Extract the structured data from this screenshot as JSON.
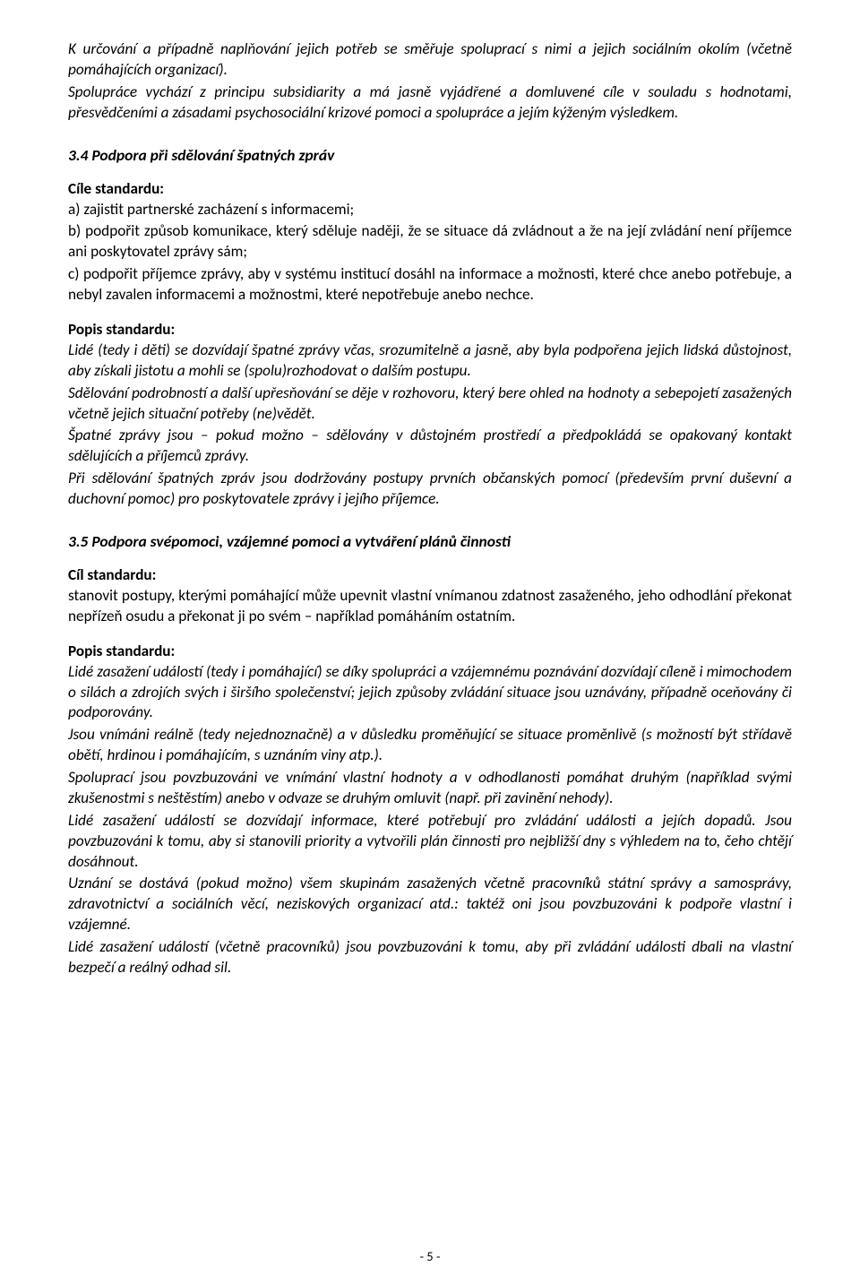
{
  "intro_p1": "K určování a případně naplňování jejich potřeb se směřuje spoluprací s nimi a jejich sociálním okolím (včetně pomáhajících organizací).",
  "intro_p2": "Spolupráce vychází z principu subsidiarity a má jasně vyjádřené a domluvené cíle v souladu s hodnotami, přesvědčeními a zásadami psychosociální krizové pomoci a spolupráce a jejím kýženým výsledkem.",
  "s34_title": "3.4 Podpora při sdělování špatných zpráv",
  "s34_cile_label": "Cíle standardu:",
  "s34_a": "a) zajistit partnerské zacházení s informacemi;",
  "s34_b": "b) podpořit způsob komunikace, který sděluje naději, že se situace dá zvládnout a že na její zvládání není příjemce ani poskytovatel zprávy sám;",
  "s34_c": "c) podpořit příjemce zprávy, aby v systému institucí dosáhl na informace a možnosti, které chce anebo potřebuje, a nebyl zavalen informacemi a možnostmi, které nepotřebuje anebo nechce.",
  "s34_popis_label": "Popis standardu:",
  "s34_p1": "Lidé (tedy i děti) se dozvídají špatné zprávy včas, srozumitelně a jasně, aby byla podpořena jejich lidská důstojnost, aby získali jistotu a mohli se (spolu)rozhodovat o dalším postupu.",
  "s34_p2": "Sdělování podrobností a další upřesňování se děje v rozhovoru, který bere ohled na hodnoty a sebepojetí zasažených včetně jejich situační potřeby (ne)vědět.",
  "s34_p3": "Špatné zprávy jsou – pokud možno – sdělovány v důstojném prostředí a předpokládá se opakovaný kontakt sdělujících a příjemců zprávy.",
  "s34_p4": "Při sdělování špatných zpráv jsou dodržovány postupy prvních občanských pomocí (především první duševní a duchovní pomoc) pro poskytovatele zprávy i jejího příjemce.",
  "s35_title": "3.5 Podpora svépomoci, vzájemné pomoci a vytváření plánů činnosti",
  "s35_cil_label": "Cíl standardu:",
  "s35_cil_text": "stanovit postupy, kterými pomáhající může upevnit vlastní vnímanou zdatnost zasaženého, jeho odhodlání překonat nepřízeň osudu a překonat ji po svém – například pomáháním ostatním.",
  "s35_popis_label": "Popis standardu:",
  "s35_p1": "Lidé zasažení událostí (tedy i pomáhající) se díky spolupráci a vzájemnému poznávání dozvídají cíleně i mimochodem o silách a zdrojích svých i širšího společenství; jejich způsoby zvládání situace jsou uznávány, případně oceňovány či podporovány.",
  "s35_p2": "Jsou vnímáni reálně (tedy nejednoznačně) a v důsledku proměňující se situace proměnlivě (s možností být střídavě obětí, hrdinou i pomáhajícím, s uznáním viny atp.).",
  "s35_p3": "Spoluprací jsou povzbuzováni ve vnímání vlastní hodnoty a v odhodlanosti pomáhat druhým (například svými zkušenostmi s neštěstím) anebo v odvaze se druhým omluvit (např. při zavinění nehody).",
  "s35_p4": "Lidé zasažení událostí se dozvídají informace, které potřebují pro zvládání události a jejích dopadů. Jsou povzbuzováni k tomu, aby si stanovili priority a vytvořili plán činnosti pro nejbližší dny s výhledem na to, čeho chtějí dosáhnout.",
  "s35_p5": "Uznání se dostává (pokud možno) všem skupinám zasažených včetně pracovníků státní správy a samosprávy, zdravotnictví a sociálních věcí, neziskových organizací atd.: taktéž oni jsou povzbuzováni k podpoře vlastní i vzájemné.",
  "s35_p6": "Lidé zasažení událostí (včetně pracovníků) jsou povzbuzováni k tomu, aby při zvládání události dbali na vlastní bezpečí a reálný odhad sil.",
  "page_number": "- 5 -"
}
